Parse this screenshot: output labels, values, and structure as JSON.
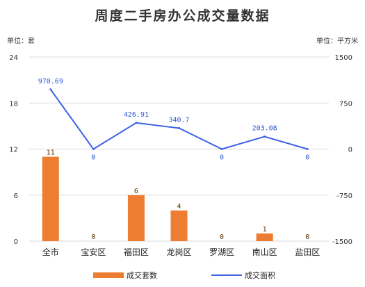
{
  "title": "周度二手房办公成交量数据",
  "unit_left": "单位：套",
  "unit_right": "单位：平方米",
  "colors": {
    "bar": "#ed7d31",
    "line": "#3d63e6",
    "grid": "#d9d9d9",
    "line_label": "#2e57d6"
  },
  "chart_data": {
    "type": "bar",
    "categories": [
      "全市",
      "宝安区",
      "福田区",
      "龙岗区",
      "罗湖区",
      "南山区",
      "盐田区"
    ],
    "series": [
      {
        "name": "成交套数",
        "type": "bar",
        "axis": "left",
        "values": [
          11,
          0,
          6,
          4,
          0,
          1,
          0
        ],
        "labels": [
          "11",
          "0",
          "6",
          "4",
          "0",
          "1",
          "0"
        ]
      },
      {
        "name": "成交面积",
        "type": "line",
        "axis": "right",
        "values": [
          970.69,
          0,
          426.91,
          340.7,
          0,
          203.08,
          0
        ],
        "labels": [
          "970.69",
          "0",
          "426.91",
          "340.7",
          "0",
          "203.08",
          "0"
        ]
      }
    ],
    "y_left": {
      "min": 0,
      "max": 24,
      "ticks": [
        0,
        6,
        12,
        18,
        24
      ]
    },
    "y_right": {
      "min": -1500,
      "max": 1500,
      "ticks": [
        -1500,
        -750,
        0,
        750,
        1500
      ]
    },
    "grid": true,
    "legend_position": "bottom"
  }
}
